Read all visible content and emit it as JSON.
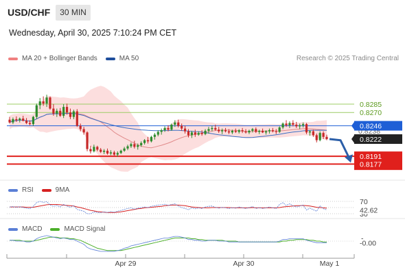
{
  "header": {
    "symbol": "USD/CHF",
    "interval": "30 MIN",
    "datetime": "Wednesday, April 30, 2025 7:10:24 PM CET"
  },
  "legend": {
    "items": [
      {
        "label": "MA 20 + Bollinger Bands",
        "color": "#f08080"
      },
      {
        "label": "MA 50",
        "color": "#1f4e9c"
      }
    ],
    "copyright": "Research © 2025 Trading Central"
  },
  "colors": {
    "bull": "#2e8b2e",
    "bear": "#c62828",
    "band_fill": "#fbd3d3",
    "ma20": "#e08a8a",
    "ma50": "#3a6fc4",
    "resistance": "#9ccc65",
    "pivot": "#1f5fd6",
    "support": "#e0201c",
    "forecast": "#2b5ea8",
    "rsi": "#5b7fd6",
    "rsi_ma": "#d62020",
    "macd": "#5b7fd6",
    "macd_signal": "#4caf2a"
  },
  "levels": {
    "resistance": [
      {
        "label": "0.8285",
        "value": 0.8285
      },
      {
        "label": "0.8270",
        "value": 0.827
      }
    ],
    "pivot": {
      "label": "0.8246",
      "value": 0.8246
    },
    "support": [
      {
        "label": "0.8191",
        "value": 0.8191
      },
      {
        "label": "0.8177",
        "value": 0.8177
      }
    ],
    "hidden_label": "0.8238"
  },
  "last_price": {
    "label": "0.8222",
    "value": 0.8222
  },
  "rsi_panel": {
    "legend": [
      {
        "label": "RSI",
        "color": "#5b7fd6"
      },
      {
        "label": "9MA",
        "color": "#d62020"
      }
    ],
    "levels": [
      "70",
      "30"
    ],
    "value_label": "42.62"
  },
  "macd_panel": {
    "legend": [
      {
        "label": "MACD",
        "color": "#5b7fd6"
      },
      {
        "label": "MACD Signal",
        "color": "#4caf2a"
      }
    ],
    "value_label": "-0.00"
  },
  "chart_data": {
    "type": "candlestick",
    "x_ticks": [
      "Apr 29",
      "Apr 30",
      "May 1"
    ],
    "candles": [
      [
        0.8257,
        0.8262,
        0.825,
        0.8252
      ],
      [
        0.8252,
        0.8261,
        0.8249,
        0.8258
      ],
      [
        0.8258,
        0.8263,
        0.8253,
        0.8256
      ],
      [
        0.8256,
        0.8261,
        0.8252,
        0.8259
      ],
      [
        0.8259,
        0.8264,
        0.8254,
        0.8255
      ],
      [
        0.8255,
        0.826,
        0.8249,
        0.8251
      ],
      [
        0.8251,
        0.8256,
        0.8247,
        0.8249
      ],
      [
        0.8249,
        0.8264,
        0.8246,
        0.8262
      ],
      [
        0.8262,
        0.8286,
        0.8258,
        0.8283
      ],
      [
        0.8283,
        0.8296,
        0.8276,
        0.829
      ],
      [
        0.829,
        0.8299,
        0.8282,
        0.8286
      ],
      [
        0.8286,
        0.8302,
        0.828,
        0.8297
      ],
      [
        0.8297,
        0.8299,
        0.8275,
        0.8277
      ],
      [
        0.8277,
        0.8285,
        0.8264,
        0.8268
      ],
      [
        0.8268,
        0.8277,
        0.8262,
        0.8273
      ],
      [
        0.8273,
        0.8278,
        0.8262,
        0.8264
      ],
      [
        0.8264,
        0.8285,
        0.826,
        0.828
      ],
      [
        0.828,
        0.8286,
        0.8266,
        0.827
      ],
      [
        0.827,
        0.8277,
        0.8258,
        0.8262
      ],
      [
        0.8262,
        0.8275,
        0.8258,
        0.8272
      ],
      [
        0.8272,
        0.8276,
        0.8244,
        0.8246
      ],
      [
        0.8246,
        0.825,
        0.8236,
        0.824
      ],
      [
        0.824,
        0.8244,
        0.823,
        0.8234
      ],
      [
        0.8234,
        0.8236,
        0.82,
        0.8204
      ],
      [
        0.8204,
        0.821,
        0.8196,
        0.82
      ],
      [
        0.82,
        0.8212,
        0.8198,
        0.8208
      ],
      [
        0.8208,
        0.821,
        0.82,
        0.8203
      ],
      [
        0.8203,
        0.8206,
        0.8197,
        0.8199
      ],
      [
        0.8199,
        0.8204,
        0.8195,
        0.8201
      ],
      [
        0.8201,
        0.8205,
        0.8194,
        0.8196
      ],
      [
        0.8196,
        0.8202,
        0.8193,
        0.8198
      ],
      [
        0.8198,
        0.8201,
        0.819,
        0.8194
      ],
      [
        0.8194,
        0.82,
        0.819,
        0.8197
      ],
      [
        0.8197,
        0.8203,
        0.8195,
        0.8201
      ],
      [
        0.8201,
        0.8208,
        0.8199,
        0.8205
      ],
      [
        0.8205,
        0.8212,
        0.8202,
        0.8209
      ],
      [
        0.8209,
        0.8216,
        0.8206,
        0.8213
      ],
      [
        0.8213,
        0.8219,
        0.8205,
        0.8208
      ],
      [
        0.8208,
        0.8214,
        0.8203,
        0.8211
      ],
      [
        0.8211,
        0.8218,
        0.8208,
        0.8215
      ],
      [
        0.8215,
        0.8222,
        0.8212,
        0.822
      ],
      [
        0.822,
        0.8226,
        0.8214,
        0.8218
      ],
      [
        0.8218,
        0.8228,
        0.8216,
        0.8226
      ],
      [
        0.8226,
        0.8233,
        0.8221,
        0.823
      ],
      [
        0.823,
        0.8238,
        0.8227,
        0.8235
      ],
      [
        0.8235,
        0.8241,
        0.823,
        0.8238
      ],
      [
        0.8238,
        0.8245,
        0.8235,
        0.8242
      ],
      [
        0.8242,
        0.8247,
        0.8236,
        0.8239
      ],
      [
        0.8239,
        0.825,
        0.8237,
        0.8248
      ],
      [
        0.8248,
        0.8256,
        0.8244,
        0.8252
      ],
      [
        0.8252,
        0.8257,
        0.8243,
        0.8246
      ],
      [
        0.8246,
        0.825,
        0.8237,
        0.8241
      ],
      [
        0.8241,
        0.8246,
        0.8232,
        0.8236
      ],
      [
        0.8236,
        0.824,
        0.8225,
        0.8229
      ],
      [
        0.8229,
        0.8237,
        0.8224,
        0.8234
      ],
      [
        0.8234,
        0.8239,
        0.8226,
        0.823
      ],
      [
        0.823,
        0.8236,
        0.8228,
        0.8233
      ],
      [
        0.8233,
        0.8238,
        0.8228,
        0.8231
      ],
      [
        0.8231,
        0.824,
        0.8229,
        0.8237
      ],
      [
        0.8237,
        0.8244,
        0.8232,
        0.824
      ],
      [
        0.824,
        0.8246,
        0.8236,
        0.8242
      ],
      [
        0.8242,
        0.8248,
        0.8237,
        0.8239
      ],
      [
        0.8239,
        0.8244,
        0.8233,
        0.8236
      ],
      [
        0.8236,
        0.8241,
        0.8231,
        0.8238
      ],
      [
        0.8238,
        0.8242,
        0.8234,
        0.8236
      ],
      [
        0.8236,
        0.824,
        0.8231,
        0.8234
      ],
      [
        0.8234,
        0.8239,
        0.8231,
        0.8237
      ],
      [
        0.8237,
        0.8241,
        0.8233,
        0.8235
      ],
      [
        0.8235,
        0.824,
        0.8232,
        0.8238
      ],
      [
        0.8238,
        0.8242,
        0.8233,
        0.8236
      ],
      [
        0.8236,
        0.824,
        0.8232,
        0.8234
      ],
      [
        0.8234,
        0.8239,
        0.8231,
        0.8237
      ],
      [
        0.8237,
        0.8242,
        0.8234,
        0.824
      ],
      [
        0.824,
        0.8243,
        0.8233,
        0.8235
      ],
      [
        0.8235,
        0.8239,
        0.8231,
        0.8237
      ],
      [
        0.8237,
        0.8241,
        0.8233,
        0.8234
      ],
      [
        0.8234,
        0.8238,
        0.823,
        0.8236
      ],
      [
        0.8236,
        0.8241,
        0.8232,
        0.8238
      ],
      [
        0.8238,
        0.8242,
        0.8234,
        0.8236
      ],
      [
        0.8236,
        0.824,
        0.8231,
        0.8235
      ],
      [
        0.8235,
        0.8245,
        0.8233,
        0.8243
      ],
      [
        0.8243,
        0.8252,
        0.824,
        0.825
      ],
      [
        0.825,
        0.8256,
        0.8244,
        0.8247
      ],
      [
        0.8247,
        0.8254,
        0.8242,
        0.8251
      ],
      [
        0.8251,
        0.8256,
        0.8245,
        0.8248
      ],
      [
        0.8248,
        0.8253,
        0.8242,
        0.8245
      ],
      [
        0.8245,
        0.825,
        0.824,
        0.8247
      ],
      [
        0.8247,
        0.8252,
        0.8243,
        0.8249
      ],
      [
        0.8249,
        0.8251,
        0.8231,
        0.8234
      ],
      [
        0.8234,
        0.8238,
        0.8228,
        0.8236
      ],
      [
        0.8236,
        0.8239,
        0.8226,
        0.8229
      ],
      [
        0.8229,
        0.8232,
        0.8216,
        0.822
      ],
      [
        0.822,
        0.8236,
        0.8218,
        0.8233
      ],
      [
        0.8233,
        0.8236,
        0.8222,
        0.8226
      ],
      [
        0.8226,
        0.823,
        0.822,
        0.8222
      ]
    ],
    "forecast": [
      0.8222,
      0.822,
      0.8187
    ],
    "rsi": [
      52,
      53,
      51,
      53,
      50,
      48,
      46,
      54,
      66,
      70,
      67,
      69,
      58,
      54,
      57,
      52,
      60,
      55,
      51,
      56,
      44,
      41,
      38,
      30,
      30,
      36,
      34,
      33,
      36,
      34,
      37,
      35,
      38,
      41,
      44,
      47,
      49,
      45,
      48,
      50,
      52,
      50,
      54,
      56,
      58,
      59,
      61,
      57,
      60,
      62,
      55,
      50,
      47,
      43,
      49,
      46,
      49,
      47,
      52,
      54,
      55,
      51,
      48,
      51,
      49,
      47,
      50,
      48,
      52,
      49,
      47,
      50,
      53,
      47,
      50,
      47,
      49,
      52,
      49,
      47,
      60,
      66,
      57,
      62,
      56,
      52,
      55,
      58,
      42,
      48,
      43,
      38,
      56,
      46,
      42.62
    ],
    "rsi_ma": [
      52,
      52,
      52,
      52,
      52,
      51,
      51,
      51,
      53,
      55,
      57,
      59,
      60,
      60,
      60,
      59,
      58,
      57,
      56,
      55,
      52,
      50,
      47,
      44,
      41,
      39,
      37,
      36,
      35,
      34,
      34,
      34,
      35,
      36,
      38,
      40,
      42,
      44,
      46,
      47,
      49,
      50,
      51,
      52,
      53,
      54,
      56,
      57,
      58,
      58,
      58,
      57,
      56,
      54,
      52,
      51,
      50,
      49,
      49,
      49,
      50,
      50,
      50,
      50,
      50,
      50,
      49,
      49,
      49,
      49,
      49,
      49,
      50,
      49,
      49,
      49,
      49,
      49,
      49,
      49,
      50,
      52,
      53,
      54,
      55,
      56,
      56,
      57,
      56,
      55,
      53,
      51,
      50,
      49,
      48
    ],
    "macd": [
      0.0001,
      0.0001,
      0.0,
      0.0,
      0.0,
      -0.0001,
      -0.0001,
      0.0,
      0.0003,
      0.0005,
      0.0006,
      0.0007,
      0.0006,
      0.0005,
      0.0004,
      0.0003,
      0.0004,
      0.0003,
      0.0002,
      0.0002,
      0.0,
      -0.0002,
      -0.0004,
      -0.0008,
      -0.001,
      -0.0011,
      -0.0012,
      -0.0013,
      -0.0013,
      -0.0013,
      -0.0013,
      -0.0013,
      -0.0012,
      -0.0011,
      -0.0009,
      -0.0008,
      -0.0006,
      -0.0005,
      -0.0004,
      -0.0003,
      -0.0002,
      -0.0001,
      0.0,
      0.0001,
      0.0002,
      0.0003,
      0.0004,
      0.0004,
      0.0005,
      0.0006,
      0.0006,
      0.0005,
      0.0004,
      0.0002,
      0.0002,
      0.0001,
      0.0001,
      0.0,
      0.0,
      0.0001,
      0.0001,
      0.0001,
      0.0,
      0.0,
      0.0,
      -0.0001,
      -0.0001,
      -0.0001,
      -0.0001,
      -0.0001,
      -0.0001,
      -0.0001,
      -0.0001,
      -0.0001,
      -0.0001,
      -0.0001,
      -0.0001,
      -0.0001,
      -0.0001,
      -0.0001,
      0.0,
      0.0002,
      0.0002,
      0.0003,
      0.0003,
      0.0003,
      0.0003,
      0.0003,
      0.0001,
      0.0,
      -0.0001,
      -0.0002,
      -0.0002,
      -0.0002,
      -0.0002
    ],
    "macd_signal": [
      0.0001,
      0.0001,
      0.0001,
      0.0001,
      0.0,
      0.0,
      0.0,
      0.0,
      0.0001,
      0.0002,
      0.0003,
      0.0004,
      0.0005,
      0.0005,
      0.0005,
      0.0004,
      0.0004,
      0.0004,
      0.0003,
      0.0003,
      0.0002,
      0.0001,
      -0.0001,
      -0.0003,
      -0.0005,
      -0.0007,
      -0.0009,
      -0.001,
      -0.0011,
      -0.0012,
      -0.0012,
      -0.0012,
      -0.0012,
      -0.0012,
      -0.0011,
      -0.001,
      -0.0009,
      -0.0008,
      -0.0007,
      -0.0006,
      -0.0005,
      -0.0004,
      -0.0003,
      -0.0002,
      -0.0001,
      0.0,
      0.0001,
      0.0002,
      0.0003,
      0.0004,
      0.0004,
      0.0004,
      0.0004,
      0.0004,
      0.0003,
      0.0003,
      0.0002,
      0.0002,
      0.0001,
      0.0001,
      0.0001,
      0.0001,
      0.0001,
      0.0001,
      0.0,
      0.0,
      0.0,
      0.0,
      -0.0001,
      -0.0001,
      -0.0001,
      -0.0001,
      -0.0001,
      -0.0001,
      -0.0001,
      -0.0001,
      -0.0001,
      -0.0001,
      -0.0001,
      -0.0001,
      -0.0001,
      0.0,
      0.0,
      0.0001,
      0.0001,
      0.0002,
      0.0002,
      0.0002,
      0.0002,
      0.0001,
      0.0001,
      0.0,
      0.0,
      -0.0001,
      -0.0001
    ]
  }
}
